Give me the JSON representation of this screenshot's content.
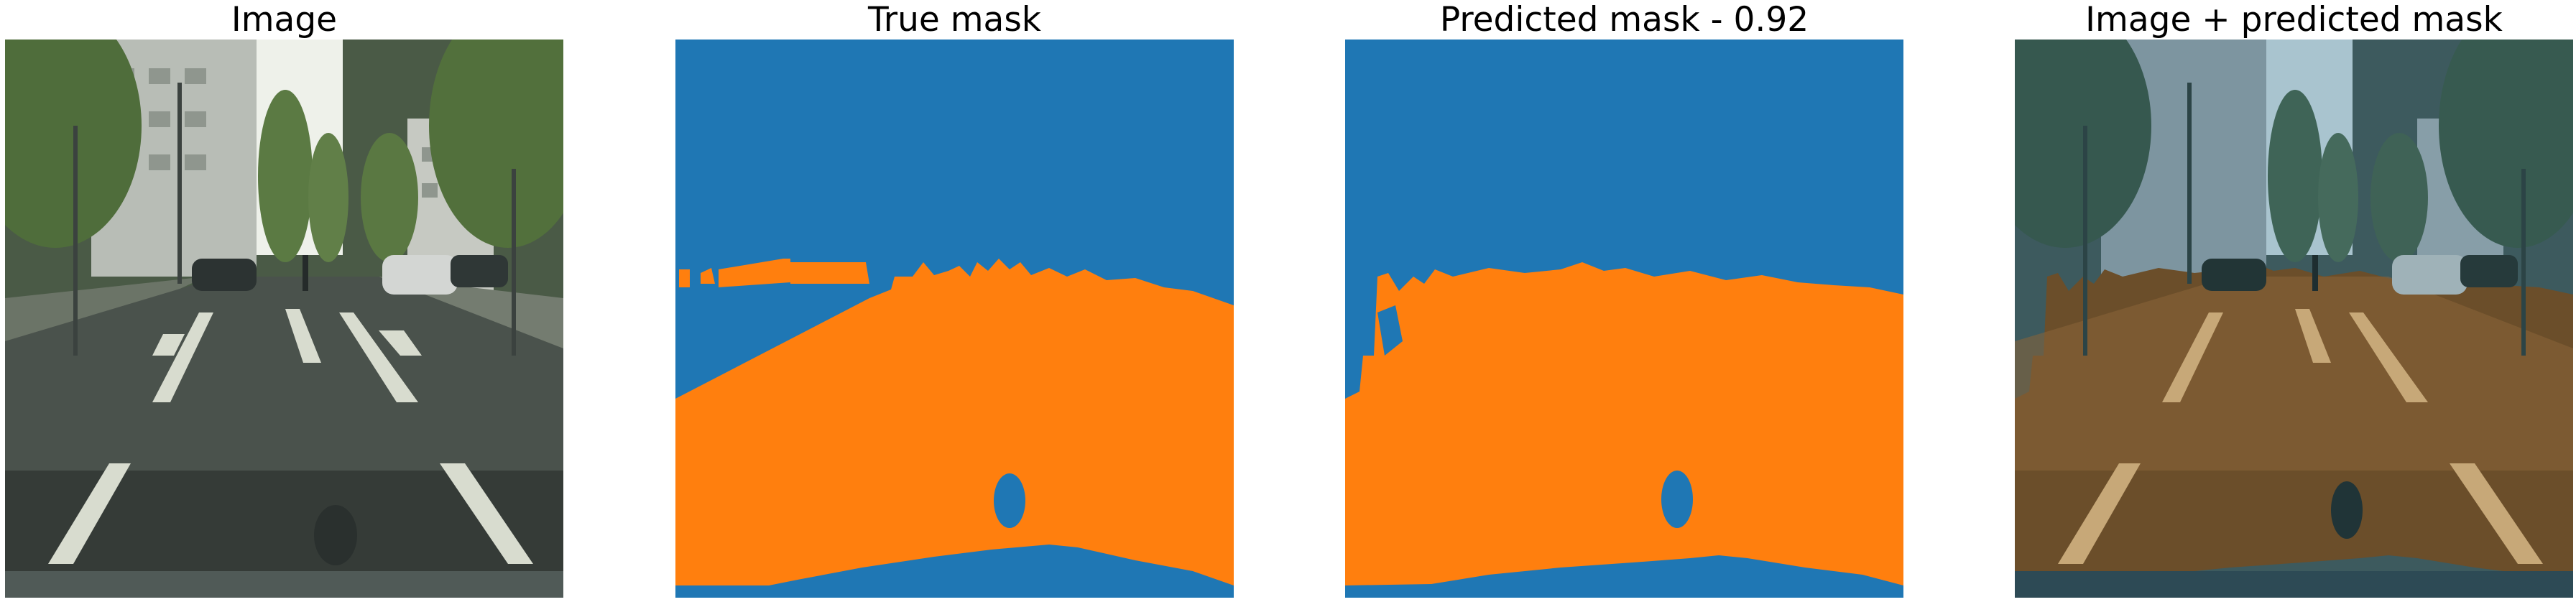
{
  "panels": [
    {
      "title": "Image"
    },
    {
      "title": "True mask"
    },
    {
      "title": "Predicted mask - 0.92"
    },
    {
      "title": "Image + predicted mask"
    }
  ],
  "colors": {
    "background_class": "#1f77b4",
    "road_class": "#ff7f0e",
    "sky": "#e9eee6",
    "foliage": "#4d6b3a",
    "asphalt": "#3e4540",
    "lane_marking": "#d8dccf"
  }
}
